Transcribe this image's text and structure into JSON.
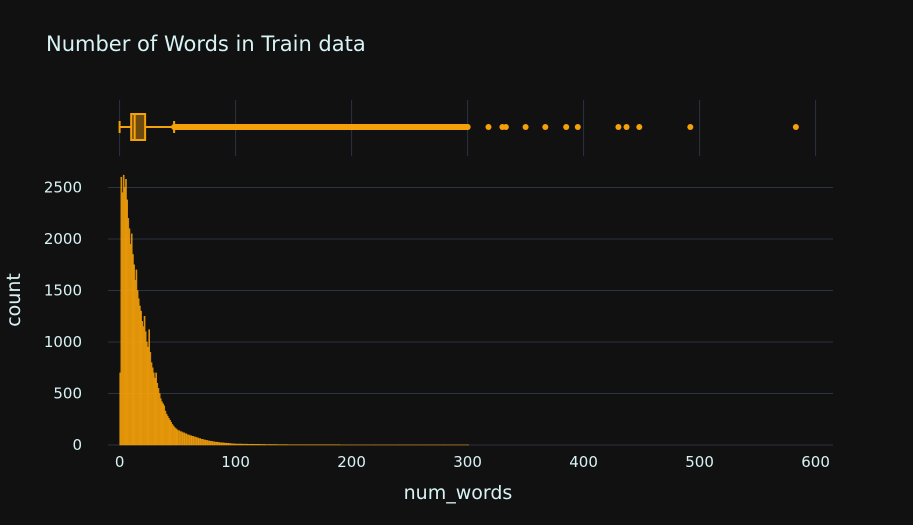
{
  "chart_data": {
    "type": "bar",
    "title": "Number of Words in Train data",
    "xlabel": "num_words",
    "ylabel": "count",
    "colors": {
      "background": "#111111",
      "grid": "#2b3440",
      "bars": "#f5a10a",
      "text": "#d8f3f5"
    },
    "xlim": [
      -10,
      615
    ],
    "ylim": [
      0,
      2650
    ],
    "x_ticks": [
      0,
      100,
      200,
      300,
      400,
      500,
      600
    ],
    "y_ticks": [
      0,
      500,
      1000,
      1500,
      2000,
      2500
    ],
    "x_tick_labels": [
      "0",
      "100",
      "200",
      "300",
      "400",
      "500",
      "600"
    ],
    "y_tick_labels": [
      "0",
      "500",
      "1000",
      "1500",
      "2000",
      "2500"
    ],
    "histogram": {
      "bin_width": 1,
      "x": [
        0,
        1,
        2,
        3,
        4,
        5,
        6,
        7,
        8,
        9,
        10,
        11,
        12,
        13,
        14,
        15,
        16,
        17,
        18,
        19,
        20,
        21,
        22,
        23,
        24,
        25,
        26,
        27,
        28,
        29,
        30,
        31,
        32,
        33,
        34,
        35,
        36,
        37,
        38,
        39,
        40,
        41,
        42,
        43,
        44,
        45,
        46,
        47,
        48,
        49,
        50,
        52,
        54,
        56,
        58,
        60,
        62,
        64,
        66,
        68,
        70,
        72,
        74,
        76,
        78,
        80,
        82,
        84,
        86,
        88,
        90,
        92,
        94,
        96,
        98,
        100,
        105,
        110,
        115,
        120,
        125,
        130,
        135,
        140,
        145,
        150,
        160,
        170,
        180,
        190,
        200,
        220,
        240,
        260,
        280,
        300
      ],
      "counts": [
        700,
        2600,
        2450,
        2620,
        2500,
        2580,
        2380,
        2200,
        2100,
        1950,
        2050,
        1850,
        1750,
        1600,
        1700,
        1500,
        1420,
        1350,
        1300,
        1200,
        1150,
        1250,
        1100,
        1000,
        950,
        1120,
        900,
        800,
        750,
        700,
        650,
        700,
        600,
        550,
        500,
        450,
        420,
        400,
        380,
        330,
        300,
        280,
        260,
        240,
        220,
        200,
        185,
        170,
        160,
        150,
        140,
        130,
        120,
        110,
        100,
        92,
        85,
        78,
        70,
        63,
        56,
        50,
        45,
        40,
        36,
        32,
        29,
        26,
        23,
        21,
        19,
        17,
        15,
        13,
        11,
        10,
        9,
        8,
        7,
        6,
        5,
        5,
        4,
        4,
        3,
        3,
        2,
        2,
        2,
        1,
        1,
        1,
        1,
        1,
        1,
        1
      ]
    },
    "box": {
      "min": 0,
      "q1": 10,
      "median": 13,
      "q3": 22,
      "upper_fence": 47,
      "outliers": [
        48,
        50,
        55,
        60,
        65,
        70,
        75,
        80,
        85,
        90,
        95,
        100,
        105,
        110,
        115,
        120,
        125,
        130,
        135,
        140,
        145,
        150,
        155,
        160,
        165,
        170,
        175,
        180,
        185,
        190,
        195,
        200,
        205,
        210,
        215,
        220,
        225,
        230,
        235,
        240,
        245,
        250,
        255,
        260,
        265,
        270,
        275,
        280,
        285,
        290,
        295,
        300,
        318,
        330,
        333,
        350,
        367,
        385,
        395,
        430,
        437,
        448,
        492,
        583
      ]
    }
  }
}
